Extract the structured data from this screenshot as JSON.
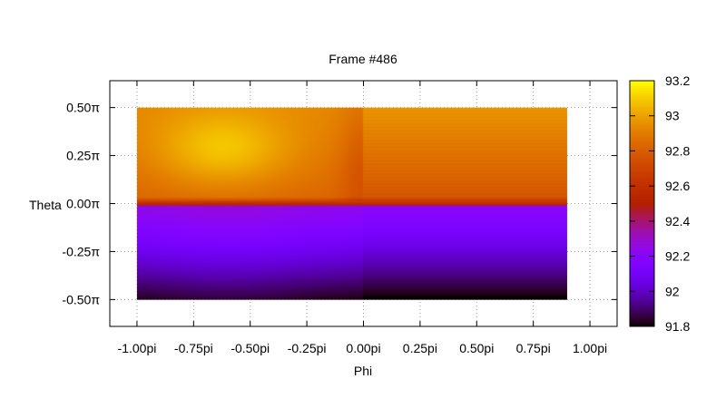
{
  "chart_data": {
    "type": "heatmap",
    "title": "Frame #486",
    "xlabel": "Phi",
    "ylabel": "Theta",
    "xlim": [
      -1.12,
      1.12
    ],
    "ylim": [
      -0.64,
      0.64
    ],
    "x_ticks": [
      {
        "value": -1.0,
        "label": "-1.00pi"
      },
      {
        "value": -0.75,
        "label": "-0.75pi"
      },
      {
        "value": -0.5,
        "label": "-0.50pi"
      },
      {
        "value": -0.25,
        "label": "-0.25pi"
      },
      {
        "value": 0.0,
        "label": "0.00pi"
      },
      {
        "value": 0.25,
        "label": "0.25pi"
      },
      {
        "value": 0.5,
        "label": "0.50pi"
      },
      {
        "value": 0.75,
        "label": "0.75pi"
      },
      {
        "value": 1.0,
        "label": "1.00pi"
      }
    ],
    "y_ticks": [
      {
        "value": 0.5,
        "label": "0.50π"
      },
      {
        "value": 0.25,
        "label": "0.25π"
      },
      {
        "value": 0.0,
        "label": "0.00π"
      },
      {
        "value": -0.25,
        "label": "-0.25π"
      },
      {
        "value": -0.5,
        "label": "-0.50π"
      }
    ],
    "data_extent": {
      "phi": [
        -1.0,
        0.9
      ],
      "theta": [
        -0.5,
        0.5
      ]
    },
    "colorbar": {
      "range": [
        91.8,
        93.2
      ],
      "ticks": [
        {
          "value": 93.2,
          "label": "93.2"
        },
        {
          "value": 93.0,
          "label": "93"
        },
        {
          "value": 92.8,
          "label": "92.8"
        },
        {
          "value": 92.6,
          "label": "92.6"
        },
        {
          "value": 92.4,
          "label": "92.4"
        },
        {
          "value": 92.2,
          "label": "92.2"
        },
        {
          "value": 92.0,
          "label": "92"
        },
        {
          "value": 91.8,
          "label": "91.8"
        }
      ],
      "colormap": "gnuplot-pm3d"
    },
    "grid": true
  }
}
